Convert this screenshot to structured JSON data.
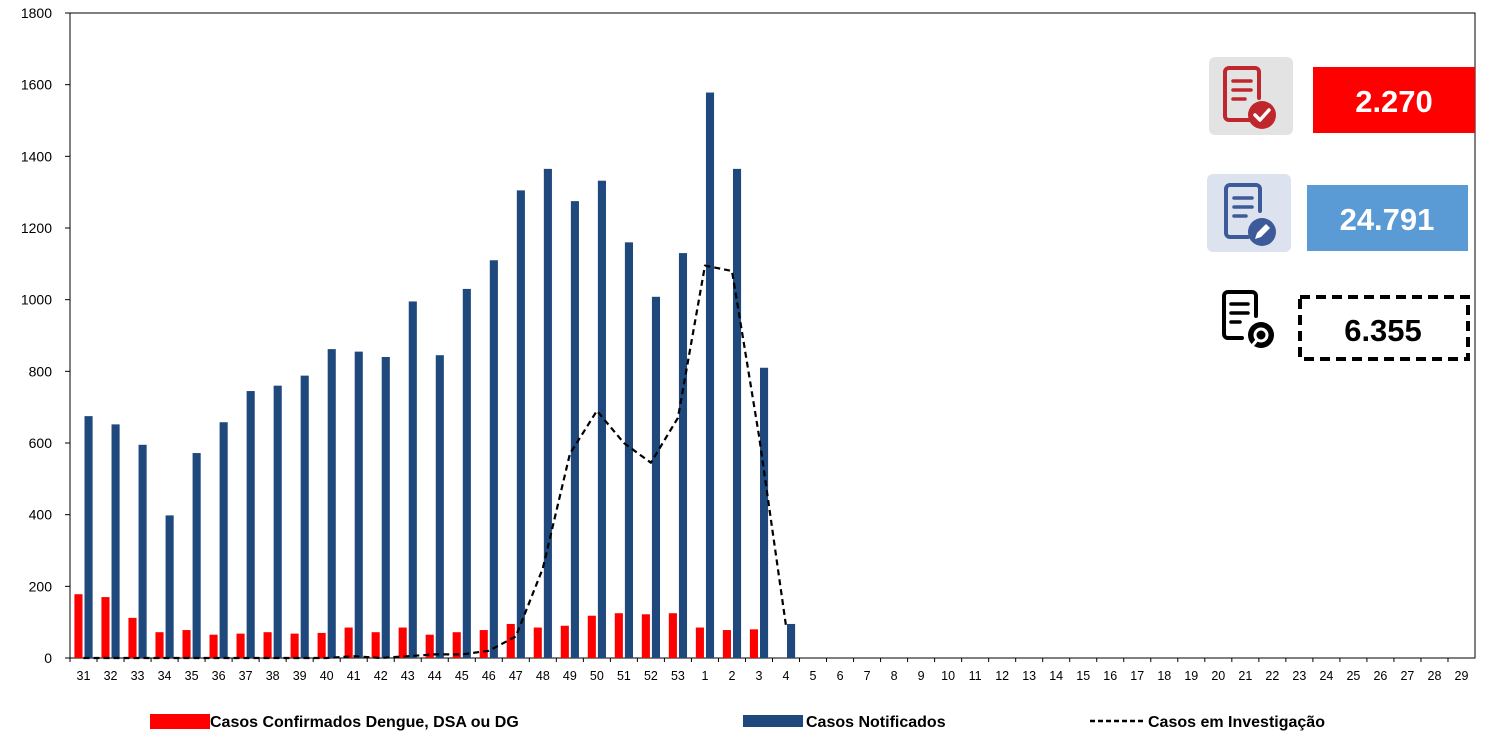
{
  "chart_data": {
    "type": "bar",
    "categories": [
      "31",
      "32",
      "33",
      "34",
      "35",
      "36",
      "37",
      "38",
      "39",
      "40",
      "41",
      "42",
      "43",
      "44",
      "45",
      "46",
      "47",
      "48",
      "49",
      "50",
      "51",
      "52",
      "53",
      "1",
      "2",
      "3",
      "4",
      "5",
      "6",
      "7",
      "8",
      "9",
      "10",
      "11",
      "12",
      "13",
      "14",
      "15",
      "16",
      "17",
      "18",
      "19",
      "20",
      "21",
      "22",
      "23",
      "24",
      "25",
      "26",
      "27",
      "28",
      "29"
    ],
    "ylim": [
      0,
      1800
    ],
    "yticks": [
      0,
      200,
      400,
      600,
      800,
      1000,
      1200,
      1400,
      1600,
      1800
    ],
    "grid": false,
    "legend_position": "bottom",
    "series": [
      {
        "name": "Casos Confirmados Dengue, DSA ou DG",
        "kind": "bar",
        "color": "#ff0000",
        "values": [
          178,
          170,
          112,
          72,
          78,
          65,
          68,
          72,
          68,
          70,
          85,
          72,
          85,
          65,
          72,
          78,
          95,
          85,
          90,
          118,
          125,
          122,
          125,
          85,
          78,
          80,
          null,
          null,
          null,
          null,
          null,
          null,
          null,
          null,
          null,
          null,
          null,
          null,
          null,
          null,
          null,
          null,
          null,
          null,
          null,
          null,
          null,
          null,
          null,
          null,
          null,
          null
        ]
      },
      {
        "name": "Casos Notificados",
        "kind": "bar",
        "color": "#1f497d",
        "values": [
          675,
          652,
          595,
          398,
          572,
          658,
          745,
          760,
          788,
          862,
          855,
          840,
          995,
          845,
          1030,
          1110,
          1305,
          1365,
          1275,
          1332,
          1160,
          1008,
          1130,
          1578,
          1365,
          810,
          95,
          null,
          null,
          null,
          null,
          null,
          null,
          null,
          null,
          null,
          null,
          null,
          null,
          null,
          null,
          null,
          null,
          null,
          null,
          null,
          null,
          null,
          null,
          null,
          null,
          null
        ]
      },
      {
        "name": "Casos em Investigação",
        "kind": "line-dashed",
        "color": "#000000",
        "values": [
          0,
          0,
          0,
          0,
          0,
          0,
          0,
          0,
          0,
          0,
          5,
          0,
          5,
          10,
          10,
          20,
          60,
          250,
          570,
          690,
          600,
          545,
          670,
          1095,
          1080,
          620,
          90,
          null,
          null,
          null,
          null,
          null,
          null,
          null,
          null,
          null,
          null,
          null,
          null,
          null,
          null,
          null,
          null,
          null,
          null,
          null,
          null,
          null,
          null,
          null,
          null,
          null
        ]
      }
    ]
  },
  "kpis": {
    "confirmed": {
      "value": "2.270",
      "icon": "document-check-icon",
      "color": "#ff0000"
    },
    "notified": {
      "value": "24.791",
      "icon": "document-edit-icon",
      "color": "#5b9bd5"
    },
    "investigation": {
      "value": "6.355",
      "icon": "document-search-icon",
      "color": "#000000"
    }
  }
}
